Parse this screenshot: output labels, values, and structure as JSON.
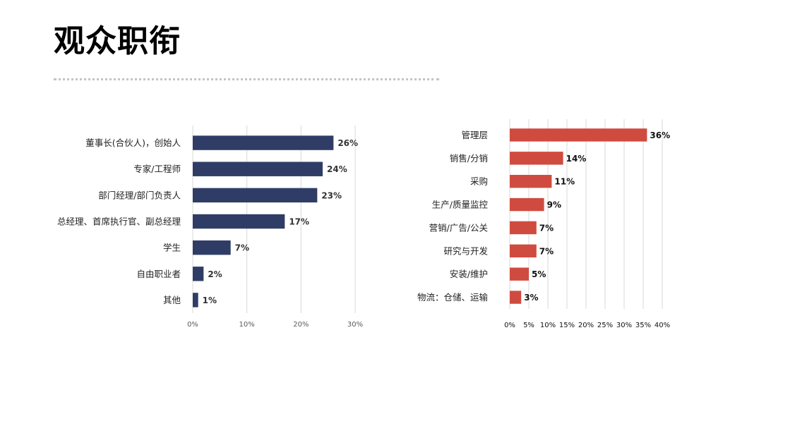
{
  "page": {
    "title": "观众职衔"
  },
  "chart_data": [
    {
      "type": "bar",
      "orientation": "horizontal",
      "categories": [
        "董事长(合伙人)，创始人",
        "专家/工程师",
        "部门经理/部门负责人",
        "总经理、首席执行官、副总经理",
        "学生",
        "自由职业者",
        "其他"
      ],
      "values": [
        26,
        24,
        23,
        17,
        7,
        2,
        1
      ],
      "value_labels": [
        "26%",
        "24%",
        "23%",
        "17%",
        "7%",
        "2%",
        "1%"
      ],
      "xlim": [
        0,
        30
      ],
      "x_ticks": [
        0,
        10,
        20,
        30
      ],
      "x_tick_labels": [
        "0%",
        "10%",
        "20%",
        "30%"
      ],
      "grid": true,
      "color": "#2f3d66"
    },
    {
      "type": "bar",
      "orientation": "horizontal",
      "categories": [
        "管理层",
        "销售/分销",
        "采购",
        "生产/质量监控",
        "营销/广告/公关",
        "研究与开发",
        "安装/维护",
        "物流：仓储、运输"
      ],
      "values": [
        36,
        14,
        11,
        9,
        7,
        7,
        5,
        3
      ],
      "value_labels": [
        "36%",
        "14%",
        "11%",
        "9%",
        "7%",
        "7%",
        "5%",
        "3%"
      ],
      "xlim": [
        0,
        40
      ],
      "x_ticks": [
        0,
        5,
        10,
        15,
        20,
        25,
        30,
        35,
        40
      ],
      "x_tick_labels": [
        "0%",
        "5%",
        "10%",
        "15%",
        "20%",
        "25%",
        "30%",
        "35%",
        "40%"
      ],
      "grid": true,
      "color": "#d04b3f"
    }
  ]
}
